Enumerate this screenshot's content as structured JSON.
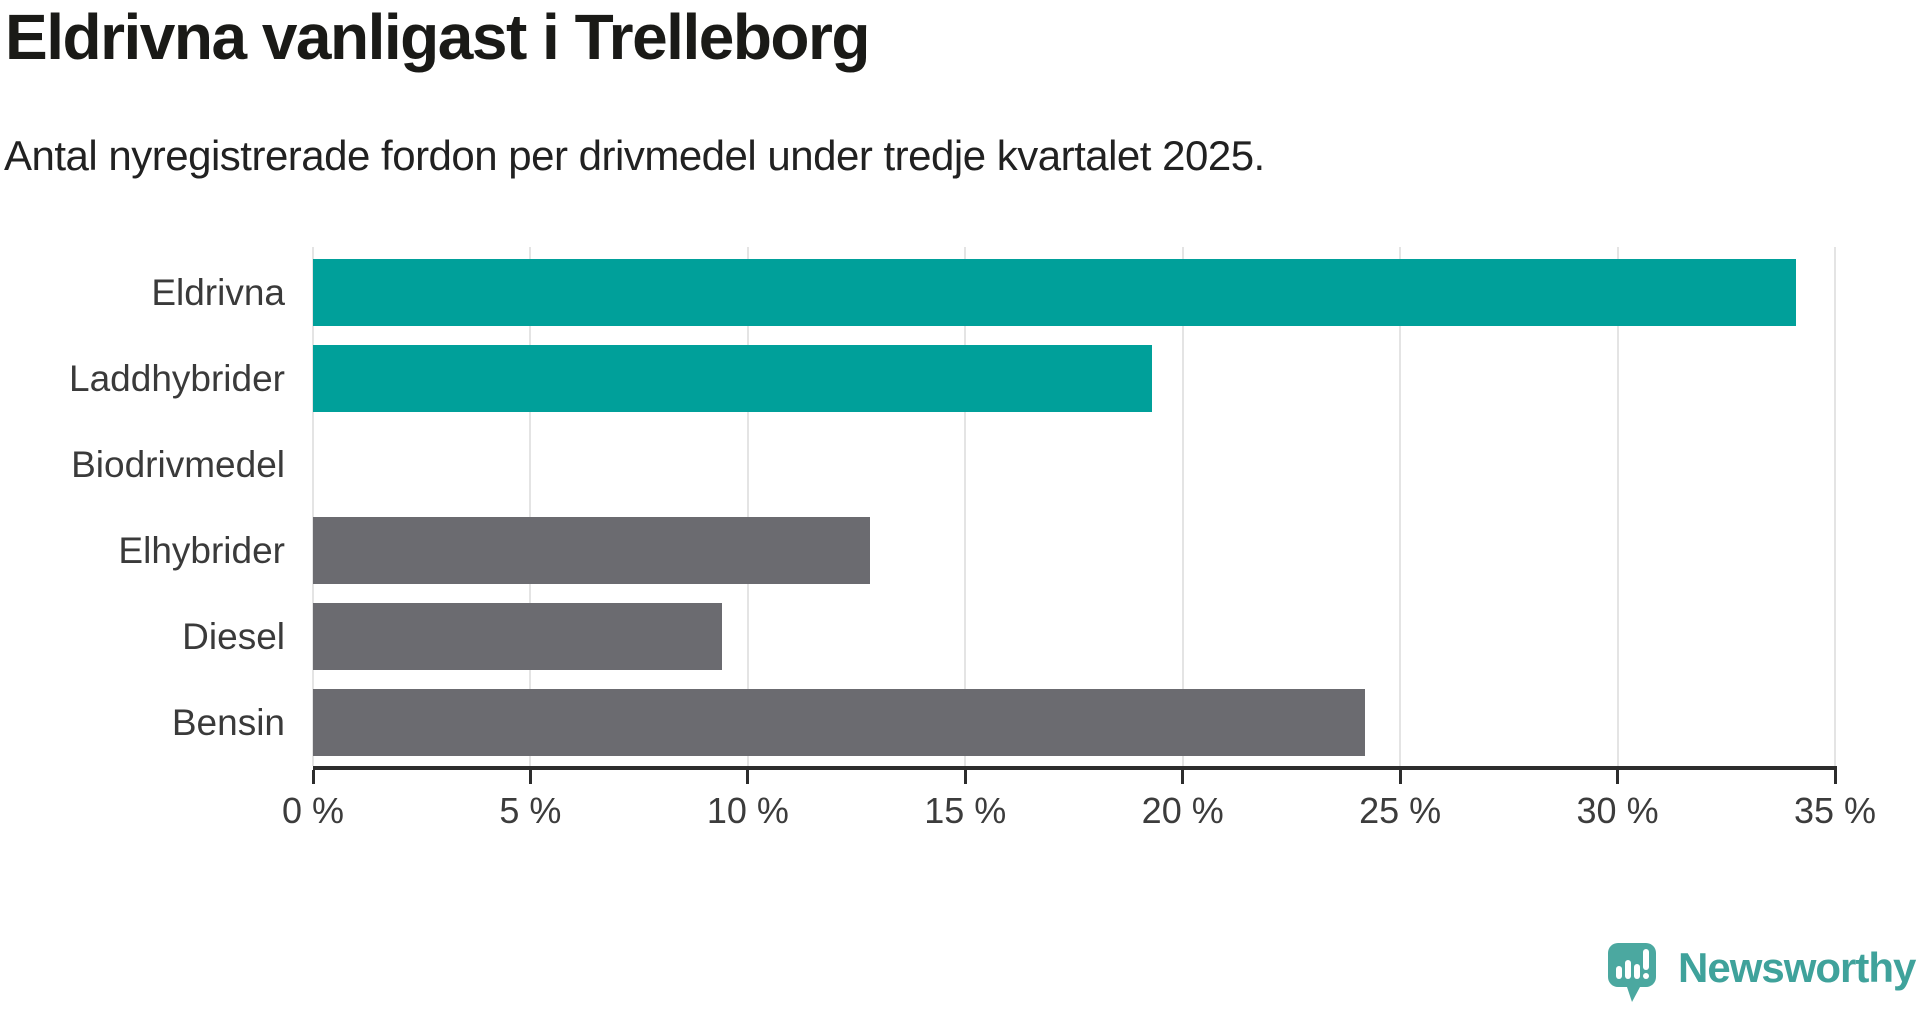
{
  "chart_data": {
    "type": "bar",
    "orientation": "horizontal",
    "title": "Eldrivna vanligast i Trelleborg",
    "subtitle": "Antal nyregistrerade fordon per drivmedel under tredje kvartalet 2025.",
    "categories": [
      "Eldrivna",
      "Laddhybrider",
      "Biodrivmedel",
      "Elhybrider",
      "Diesel",
      "Bensin"
    ],
    "values": [
      34.1,
      19.3,
      0,
      12.8,
      9.4,
      24.2
    ],
    "unit": "%",
    "xlabel": "",
    "ylabel": "",
    "xlim": [
      0,
      35
    ],
    "x_ticks": [
      0,
      5,
      10,
      15,
      20,
      25,
      30,
      35
    ],
    "x_tick_labels": [
      "0 %",
      "5 %",
      "10 %",
      "15 %",
      "20 %",
      "25 %",
      "30 %",
      "35 %"
    ],
    "bar_colors": [
      "#00A09A",
      "#00A09A",
      "#6B6B70",
      "#6B6B70",
      "#6B6B70",
      "#6B6B70"
    ],
    "highlight_color": "#00A09A",
    "base_color": "#6B6B70",
    "grid": true,
    "legend": false
  },
  "branding": {
    "name": "Newsworthy",
    "text_color": "#3FA29B",
    "icon_color": "#4BA8A0",
    "icon": "newsworthy-speech-bubble-chart-icon"
  }
}
